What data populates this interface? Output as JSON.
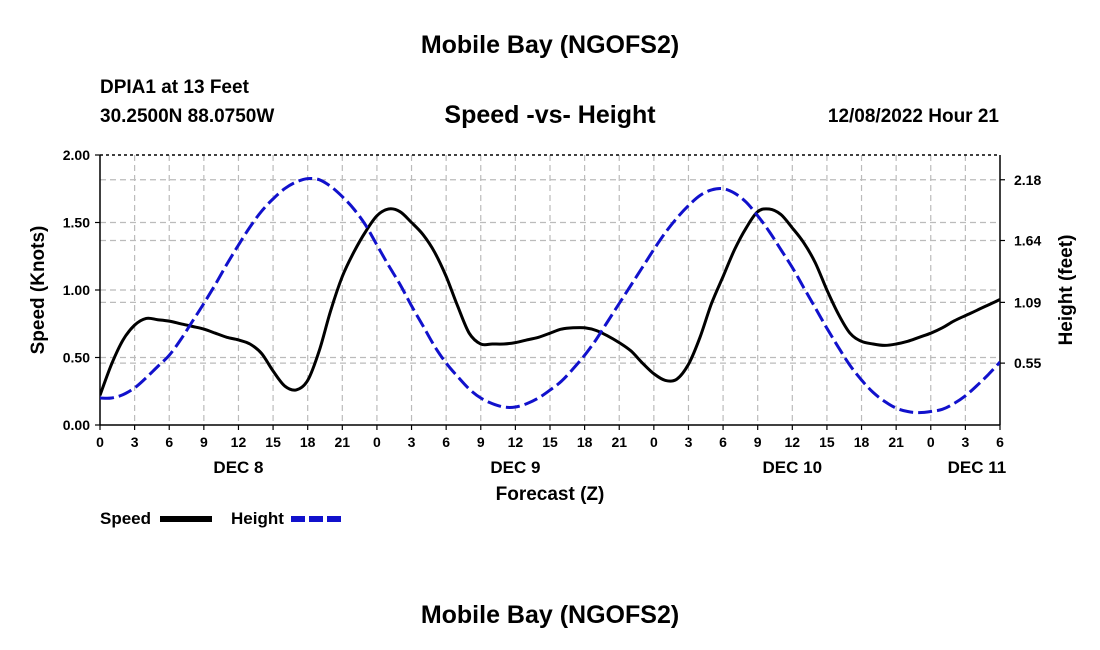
{
  "page": {
    "title": "Mobile Bay (NGOFS2)",
    "footer_title": "Mobile Bay (NGOFS2)",
    "station": "DPIA1 at 13 Feet",
    "coords": "30.2500N  88.0750W",
    "subtitle": "Speed -vs- Height",
    "datetime": "12/08/2022 Hour 21"
  },
  "colors": {
    "speed": "#000000",
    "height": "#1111cc",
    "grid": "#bbbbbb"
  },
  "chart_data": {
    "type": "line",
    "title": "Speed -vs- Height",
    "xlabel": "Forecast (Z)",
    "ylabel": "Speed (Knots)",
    "y2label": "Height (feet)",
    "xlim": [
      0,
      78
    ],
    "ylim": [
      0,
      2
    ],
    "y2lim": [
      0,
      2.4
    ],
    "yticks": [
      0,
      0.5,
      1,
      1.5,
      2
    ],
    "ytick_labels": [
      "0.00",
      "0.50",
      "1.00",
      "1.50",
      "2.00"
    ],
    "y2ticks": [
      0.55,
      1.09,
      1.64,
      2.18
    ],
    "y2tick_labels": [
      "0.55",
      "1.09",
      "1.64",
      "2.18"
    ],
    "xticks": [
      0,
      3,
      6,
      9,
      12,
      15,
      18,
      21,
      24,
      27,
      30,
      33,
      36,
      39,
      42,
      45,
      48,
      51,
      54,
      57,
      60,
      63,
      66,
      69,
      72,
      75,
      78
    ],
    "xtick_labels": [
      "0",
      "3",
      "6",
      "9",
      "12",
      "15",
      "18",
      "21",
      "0",
      "3",
      "6",
      "9",
      "12",
      "15",
      "18",
      "21",
      "0",
      "3",
      "6",
      "9",
      "12",
      "15",
      "18",
      "21",
      "0",
      "3",
      "6"
    ],
    "day_labels": [
      {
        "x": 12,
        "label": "DEC 8"
      },
      {
        "x": 36,
        "label": "DEC 9"
      },
      {
        "x": 60,
        "label": "DEC 10"
      },
      {
        "x": 76,
        "label": "DEC 11"
      }
    ],
    "grid": true,
    "legend_position": "bottom-left",
    "series": [
      {
        "name": "Speed",
        "axis": "left",
        "style": "solid",
        "x": [
          0,
          1,
          2,
          3,
          4,
          5,
          6,
          7,
          8,
          9,
          10,
          11,
          12,
          13,
          14,
          15,
          16,
          17,
          18,
          19,
          20,
          21,
          22,
          23,
          24,
          25,
          26,
          27,
          28,
          29,
          30,
          31,
          32,
          33,
          34,
          35,
          36,
          37,
          38,
          39,
          40,
          41,
          42,
          43,
          44,
          45,
          46,
          47,
          48,
          49,
          50,
          51,
          52,
          53,
          54,
          55,
          56,
          57,
          58,
          59,
          60,
          61,
          62,
          63,
          64,
          65,
          66,
          67,
          68,
          69,
          70,
          71,
          72,
          73,
          74,
          75,
          76,
          77,
          78
        ],
        "values": [
          0.22,
          0.45,
          0.63,
          0.74,
          0.79,
          0.78,
          0.77,
          0.75,
          0.73,
          0.71,
          0.68,
          0.65,
          0.63,
          0.6,
          0.53,
          0.4,
          0.29,
          0.26,
          0.33,
          0.55,
          0.85,
          1.1,
          1.28,
          1.43,
          1.55,
          1.6,
          1.58,
          1.5,
          1.41,
          1.28,
          1.1,
          0.88,
          0.68,
          0.6,
          0.6,
          0.6,
          0.61,
          0.63,
          0.65,
          0.68,
          0.71,
          0.72,
          0.72,
          0.7,
          0.66,
          0.61,
          0.55,
          0.46,
          0.38,
          0.33,
          0.34,
          0.45,
          0.65,
          0.9,
          1.1,
          1.3,
          1.46,
          1.58,
          1.6,
          1.56,
          1.46,
          1.35,
          1.2,
          1.0,
          0.82,
          0.68,
          0.62,
          0.6,
          0.59,
          0.6,
          0.62,
          0.65,
          0.68,
          0.72,
          0.77,
          0.81,
          0.85,
          0.89,
          0.93
        ]
      },
      {
        "name": "Height",
        "axis": "right",
        "style": "dashed",
        "x": [
          0,
          1,
          2,
          3,
          4,
          5,
          6,
          7,
          8,
          9,
          10,
          11,
          12,
          13,
          14,
          15,
          16,
          17,
          18,
          19,
          20,
          21,
          22,
          23,
          24,
          25,
          26,
          27,
          28,
          29,
          30,
          31,
          32,
          33,
          34,
          35,
          36,
          37,
          38,
          39,
          40,
          41,
          42,
          43,
          44,
          45,
          46,
          47,
          48,
          49,
          50,
          51,
          52,
          53,
          54,
          55,
          56,
          57,
          58,
          59,
          60,
          61,
          62,
          63,
          64,
          65,
          66,
          67,
          68,
          69,
          70,
          71,
          72,
          73,
          74,
          75,
          76,
          77,
          78
        ],
        "values": [
          0.24,
          0.24,
          0.27,
          0.33,
          0.42,
          0.52,
          0.62,
          0.76,
          0.92,
          1.08,
          1.25,
          1.43,
          1.6,
          1.76,
          1.9,
          2.01,
          2.1,
          2.16,
          2.19,
          2.18,
          2.12,
          2.03,
          1.92,
          1.78,
          1.6,
          1.42,
          1.25,
          1.06,
          0.88,
          0.7,
          0.55,
          0.43,
          0.32,
          0.24,
          0.19,
          0.16,
          0.16,
          0.19,
          0.24,
          0.31,
          0.39,
          0.5,
          0.62,
          0.76,
          0.92,
          1.08,
          1.24,
          1.4,
          1.56,
          1.71,
          1.84,
          1.95,
          2.04,
          2.09,
          2.1,
          2.06,
          1.98,
          1.86,
          1.72,
          1.56,
          1.4,
          1.22,
          1.04,
          0.86,
          0.69,
          0.53,
          0.4,
          0.29,
          0.21,
          0.15,
          0.12,
          0.11,
          0.12,
          0.14,
          0.19,
          0.26,
          0.35,
          0.45,
          0.56
        ]
      }
    ]
  },
  "legend": {
    "speed_label": "Speed",
    "height_label": "Height"
  }
}
